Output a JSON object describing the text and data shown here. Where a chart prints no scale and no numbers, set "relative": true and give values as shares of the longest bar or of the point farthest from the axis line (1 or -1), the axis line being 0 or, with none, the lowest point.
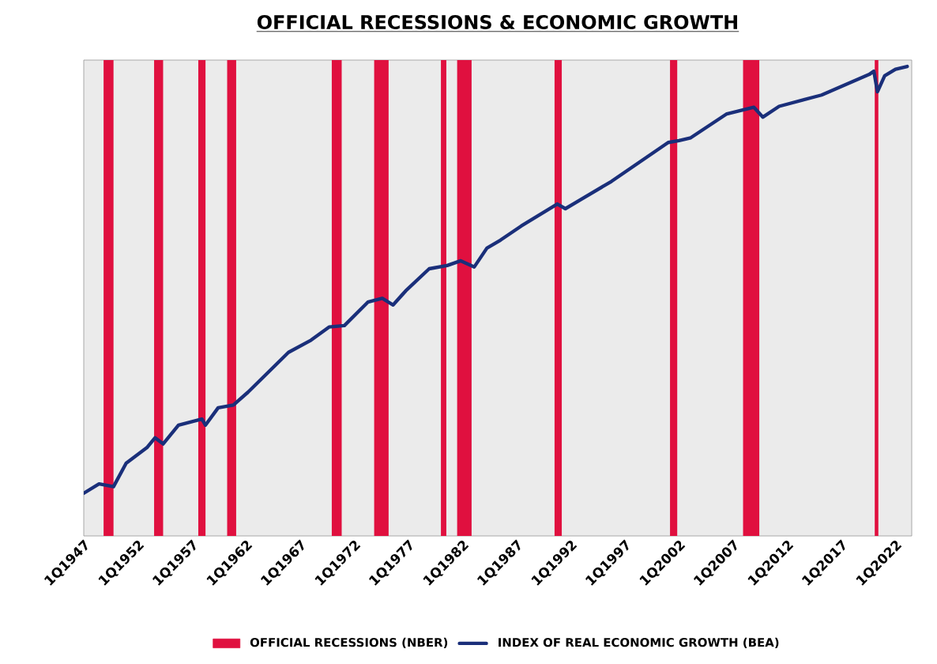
{
  "chart_data": {
    "type": "line",
    "title": "OFFICIAL RECESSIONS & ECONOMIC GROWTH",
    "relative": true,
    "legend": "bottom",
    "marker": "none",
    "line_style": "solid",
    "grid": false,
    "xlim": [
      "1947-01",
      "2023-07"
    ],
    "xticks": [
      {
        "value": "1947-01",
        "label": "1Q1947"
      },
      {
        "value": "1952-01",
        "label": "1Q1952"
      },
      {
        "value": "1957-01",
        "label": "1Q1957"
      },
      {
        "value": "1962-01",
        "label": "1Q1962"
      },
      {
        "value": "1967-01",
        "label": "1Q1967"
      },
      {
        "value": "1972-01",
        "label": "1Q1972"
      },
      {
        "value": "1977-01",
        "label": "1Q1977"
      },
      {
        "value": "1982-01",
        "label": "1Q1982"
      },
      {
        "value": "1987-01",
        "label": "1Q1987"
      },
      {
        "value": "1992-01",
        "label": "1Q1992"
      },
      {
        "value": "1997-01",
        "label": "1Q1997"
      },
      {
        "value": "2002-01",
        "label": "1Q2002"
      },
      {
        "value": "2007-01",
        "label": "1Q2007"
      },
      {
        "value": "2012-01",
        "label": "1Q2012"
      },
      {
        "value": "2017-01",
        "label": "1Q2017"
      },
      {
        "value": "2022-01",
        "label": "1Q2022"
      }
    ],
    "series": [
      {
        "name": "INDEX OF REAL ECONOMIC GROWTH (BEA)",
        "color": "#1a2f7a",
        "x": [
          "1947-01",
          "1948-06",
          "1949-10",
          "1950-12",
          "1952-11",
          "1953-08",
          "1954-05",
          "1955-10",
          "1957-12",
          "1958-04",
          "1959-06",
          "1960-11",
          "1962-03",
          "1965-12",
          "1968-01",
          "1969-09",
          "1971-02",
          "1973-04",
          "1974-08",
          "1975-08",
          "1976-10",
          "1978-12",
          "1980-08",
          "1981-11",
          "1983-02",
          "1984-04",
          "1985-07",
          "1987-06",
          "1990-10",
          "1991-07",
          "1995-10",
          "2001-01",
          "2002-01",
          "2003-02",
          "2006-06",
          "2008-12",
          "2009-10",
          "2011-04",
          "2015-03",
          "2019-08",
          "2020-01",
          "2020-05",
          "2021-01",
          "2022-01",
          "2023-02"
        ],
        "values": [
          0.091,
          0.111,
          0.105,
          0.155,
          0.188,
          0.209,
          0.196,
          0.236,
          0.249,
          0.236,
          0.273,
          0.279,
          0.306,
          0.391,
          0.417,
          0.445,
          0.448,
          0.498,
          0.506,
          0.492,
          0.522,
          0.569,
          0.576,
          0.586,
          0.573,
          0.613,
          0.63,
          0.66,
          0.707,
          0.697,
          0.755,
          0.838,
          0.842,
          0.848,
          0.899,
          0.913,
          0.892,
          0.915,
          0.939,
          0.983,
          0.99,
          0.946,
          0.98,
          0.994,
          1.0
        ]
      }
    ],
    "bands": [
      {
        "axis": "x",
        "from": "1948-11",
        "to": "1949-10",
        "label": "OFFICIAL RECESSIONS (NBER)",
        "color": "#e0103f"
      },
      {
        "axis": "x",
        "from": "1953-07",
        "to": "1954-05",
        "color": "#e0103f"
      },
      {
        "axis": "x",
        "from": "1957-08",
        "to": "1958-04",
        "color": "#e0103f"
      },
      {
        "axis": "x",
        "from": "1960-04",
        "to": "1961-02",
        "color": "#e0103f"
      },
      {
        "axis": "x",
        "from": "1969-12",
        "to": "1970-11",
        "color": "#e0103f"
      },
      {
        "axis": "x",
        "from": "1973-11",
        "to": "1975-03",
        "color": "#e0103f"
      },
      {
        "axis": "x",
        "from": "1980-01",
        "to": "1980-07",
        "color": "#e0103f"
      },
      {
        "axis": "x",
        "from": "1981-07",
        "to": "1982-11",
        "color": "#e0103f"
      },
      {
        "axis": "x",
        "from": "1990-07",
        "to": "1991-03",
        "color": "#e0103f"
      },
      {
        "axis": "x",
        "from": "2001-03",
        "to": "2001-11",
        "color": "#e0103f"
      },
      {
        "axis": "x",
        "from": "2007-12",
        "to": "2009-06",
        "color": "#e0103f"
      },
      {
        "axis": "x",
        "from": "2020-02",
        "to": "2020-06",
        "color": "#e0103f"
      }
    ]
  }
}
